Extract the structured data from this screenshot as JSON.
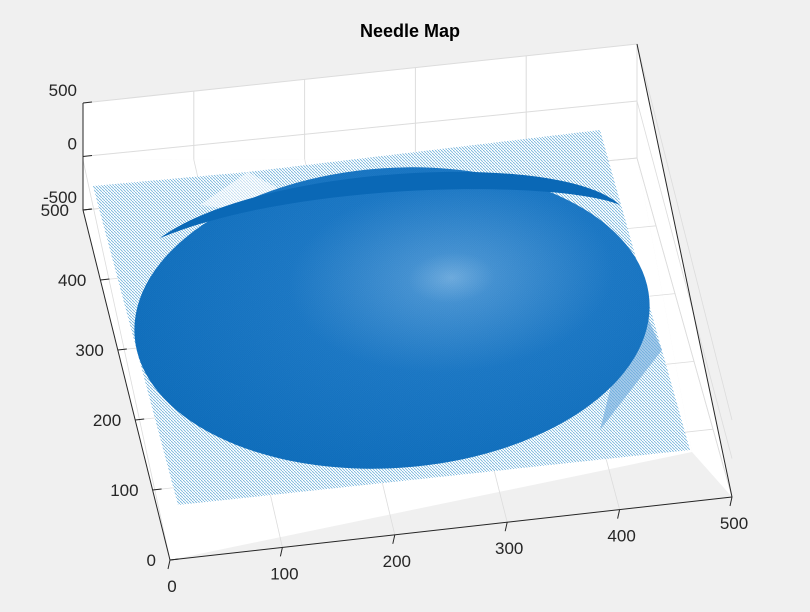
{
  "figure": {
    "background_color": "#f0f0f0",
    "axes_background_color": "#ffffff",
    "grid_color": "#dcdcdc",
    "axis_color": "#262626",
    "needle_color": "#0072bd"
  },
  "chart_data": {
    "type": "needle-map-3d",
    "title": "Needle Map",
    "xlabel": "",
    "ylabel": "",
    "zlabel": "",
    "grid": true,
    "xlim": [
      0,
      500
    ],
    "ylim": [
      0,
      500
    ],
    "zlim": [
      -500,
      500
    ],
    "x_ticks": [
      "0",
      "100",
      "200",
      "300",
      "400",
      "500"
    ],
    "y_ticks": [
      "0",
      "100",
      "200",
      "300",
      "400",
      "500"
    ],
    "z_ticks": [
      "-500",
      "0",
      "500"
    ],
    "series": [
      {
        "description_type": "surface-normals",
        "color": "#0072bd",
        "shape": "sphere",
        "sphere_center": [
          250,
          250
        ],
        "sphere_radius": 235,
        "background": "flat plane"
      }
    ]
  }
}
